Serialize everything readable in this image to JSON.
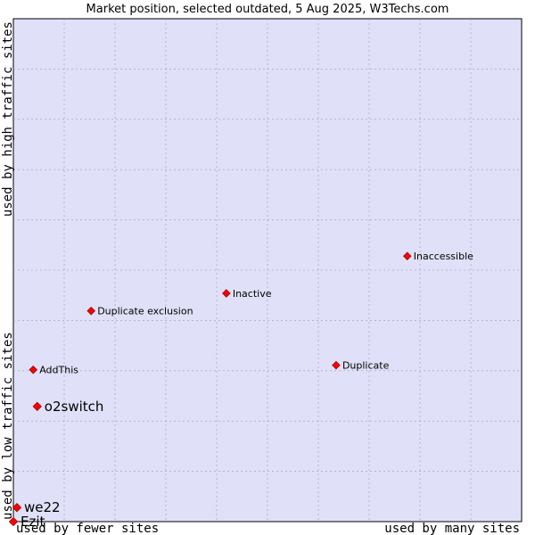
{
  "title": "Market position, selected outdated, 5 Aug 2025, W3Techs.com",
  "axis_labels": {
    "x_low": "used by fewer sites",
    "x_high": "used by many sites",
    "y_low": "used by low traffic sites",
    "y_high": "used by high traffic sites"
  },
  "colors": {
    "plot_background": "#e0e0f8",
    "marker": "#ff0000",
    "grid": "#9a9ab0"
  },
  "chart_data": {
    "type": "scatter",
    "title": "Market position, selected outdated, 5 Aug 2025, W3Techs.com",
    "xlabel": "used by fewer sites → used by many sites",
    "ylabel": "used by low traffic sites → used by high traffic sites",
    "xlim": [
      0,
      1
    ],
    "ylim": [
      0,
      1
    ],
    "grid": true,
    "points": [
      {
        "name": "Inaccessible",
        "x": 0.775,
        "y": 0.528,
        "emphasis": false
      },
      {
        "name": "Inactive",
        "x": 0.419,
        "y": 0.454,
        "emphasis": false
      },
      {
        "name": "Duplicate exclusion",
        "x": 0.153,
        "y": 0.419,
        "emphasis": false
      },
      {
        "name": "Duplicate",
        "x": 0.635,
        "y": 0.311,
        "emphasis": false
      },
      {
        "name": "AddThis",
        "x": 0.039,
        "y": 0.302,
        "emphasis": false
      },
      {
        "name": "o2switch",
        "x": 0.047,
        "y": 0.229,
        "emphasis": true
      },
      {
        "name": "we22",
        "x": 0.007,
        "y": 0.028,
        "emphasis": true
      },
      {
        "name": "Ezit",
        "x": 0.0,
        "y": 0.0,
        "emphasis": true
      }
    ]
  }
}
